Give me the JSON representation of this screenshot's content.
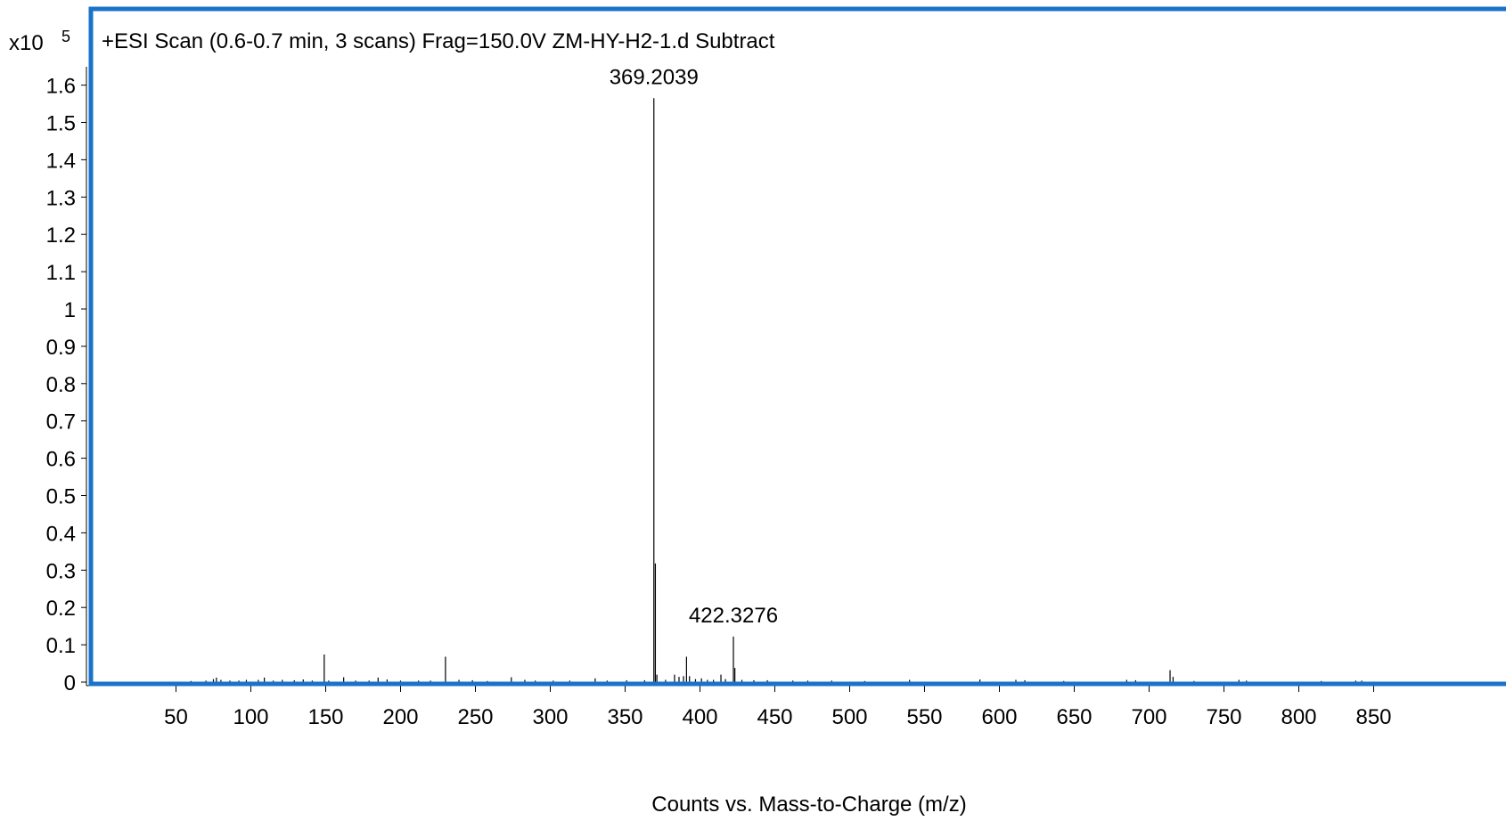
{
  "chart_data": {
    "type": "bar",
    "title": "+ESI Scan (0.6-0.7 min, 3 scans) Frag=150.0V ZM-HY-H2-1.d  Subtract",
    "y_multiplier": {
      "base": "x10",
      "exponent": "5"
    },
    "xlabel": "Counts vs. Mass-to-Charge (m/z)",
    "ylabel": "",
    "xlim": [
      0,
      870
    ],
    "ylim": [
      0,
      1.65
    ],
    "x_ticks": [
      50,
      100,
      150,
      200,
      250,
      300,
      350,
      400,
      450,
      500,
      550,
      600,
      650,
      700,
      750,
      800,
      850
    ],
    "y_ticks": [
      0,
      0.1,
      0.2,
      0.3,
      0.4,
      0.5,
      0.6,
      0.7,
      0.8,
      0.9,
      1,
      1.1,
      1.2,
      1.3,
      1.4,
      1.5,
      1.6
    ],
    "peaks": [
      {
        "mz": 60,
        "intensity": 0.003
      },
      {
        "mz": 70,
        "intensity": 0.004
      },
      {
        "mz": 75,
        "intensity": 0.008
      },
      {
        "mz": 77,
        "intensity": 0.012
      },
      {
        "mz": 80,
        "intensity": 0.006
      },
      {
        "mz": 86,
        "intensity": 0.004
      },
      {
        "mz": 92,
        "intensity": 0.004
      },
      {
        "mz": 97,
        "intensity": 0.006
      },
      {
        "mz": 105,
        "intensity": 0.006
      },
      {
        "mz": 109,
        "intensity": 0.012
      },
      {
        "mz": 115,
        "intensity": 0.004
      },
      {
        "mz": 121,
        "intensity": 0.006
      },
      {
        "mz": 129,
        "intensity": 0.005
      },
      {
        "mz": 135,
        "intensity": 0.007
      },
      {
        "mz": 141,
        "intensity": 0.004
      },
      {
        "mz": 149,
        "intensity": 0.074
      },
      {
        "mz": 152,
        "intensity": 0.004
      },
      {
        "mz": 162,
        "intensity": 0.013
      },
      {
        "mz": 170,
        "intensity": 0.004
      },
      {
        "mz": 179,
        "intensity": 0.004
      },
      {
        "mz": 185,
        "intensity": 0.012
      },
      {
        "mz": 191,
        "intensity": 0.007
      },
      {
        "mz": 200,
        "intensity": 0.004
      },
      {
        "mz": 212,
        "intensity": 0.004
      },
      {
        "mz": 220,
        "intensity": 0.004
      },
      {
        "mz": 230,
        "intensity": 0.068
      },
      {
        "mz": 239,
        "intensity": 0.006
      },
      {
        "mz": 248,
        "intensity": 0.005
      },
      {
        "mz": 258,
        "intensity": 0.003
      },
      {
        "mz": 274,
        "intensity": 0.013
      },
      {
        "mz": 283,
        "intensity": 0.006
      },
      {
        "mz": 290,
        "intensity": 0.004
      },
      {
        "mz": 302,
        "intensity": 0.004
      },
      {
        "mz": 313,
        "intensity": 0.004
      },
      {
        "mz": 330,
        "intensity": 0.01
      },
      {
        "mz": 338,
        "intensity": 0.004
      },
      {
        "mz": 351,
        "intensity": 0.005
      },
      {
        "mz": 363,
        "intensity": 0.005
      },
      {
        "mz": 369.2039,
        "intensity": 1.565
      },
      {
        "mz": 370.2,
        "intensity": 0.318
      },
      {
        "mz": 371.2,
        "intensity": 0.02
      },
      {
        "mz": 377,
        "intensity": 0.006
      },
      {
        "mz": 383,
        "intensity": 0.02
      },
      {
        "mz": 386,
        "intensity": 0.014
      },
      {
        "mz": 389,
        "intensity": 0.016
      },
      {
        "mz": 391,
        "intensity": 0.068
      },
      {
        "mz": 393,
        "intensity": 0.016
      },
      {
        "mz": 397,
        "intensity": 0.008
      },
      {
        "mz": 401,
        "intensity": 0.01
      },
      {
        "mz": 405,
        "intensity": 0.006
      },
      {
        "mz": 409,
        "intensity": 0.006
      },
      {
        "mz": 414,
        "intensity": 0.02
      },
      {
        "mz": 417,
        "intensity": 0.008
      },
      {
        "mz": 422.3276,
        "intensity": 0.122
      },
      {
        "mz": 423.3,
        "intensity": 0.038
      },
      {
        "mz": 428,
        "intensity": 0.006
      },
      {
        "mz": 436,
        "intensity": 0.005
      },
      {
        "mz": 445,
        "intensity": 0.005
      },
      {
        "mz": 462,
        "intensity": 0.004
      },
      {
        "mz": 472,
        "intensity": 0.004
      },
      {
        "mz": 488,
        "intensity": 0.004
      },
      {
        "mz": 510,
        "intensity": 0.003
      },
      {
        "mz": 540,
        "intensity": 0.006
      },
      {
        "mz": 587,
        "intensity": 0.007
      },
      {
        "mz": 611,
        "intensity": 0.006
      },
      {
        "mz": 617,
        "intensity": 0.005
      },
      {
        "mz": 643,
        "intensity": 0.003
      },
      {
        "mz": 685,
        "intensity": 0.006
      },
      {
        "mz": 691,
        "intensity": 0.005
      },
      {
        "mz": 714,
        "intensity": 0.032
      },
      {
        "mz": 716,
        "intensity": 0.014
      },
      {
        "mz": 730,
        "intensity": 0.003
      },
      {
        "mz": 760,
        "intensity": 0.006
      },
      {
        "mz": 765,
        "intensity": 0.004
      },
      {
        "mz": 815,
        "intensity": 0.003
      },
      {
        "mz": 838,
        "intensity": 0.004
      },
      {
        "mz": 842,
        "intensity": 0.004
      }
    ],
    "annotations": [
      {
        "text": "369.2039",
        "mz": 369.2039,
        "intensity": 1.565
      },
      {
        "text": "422.3276",
        "mz": 422.3276,
        "intensity": 0.122
      }
    ],
    "frame_color": "#1a73c8",
    "line_color": "#000000",
    "grid": false,
    "legend": "none"
  }
}
